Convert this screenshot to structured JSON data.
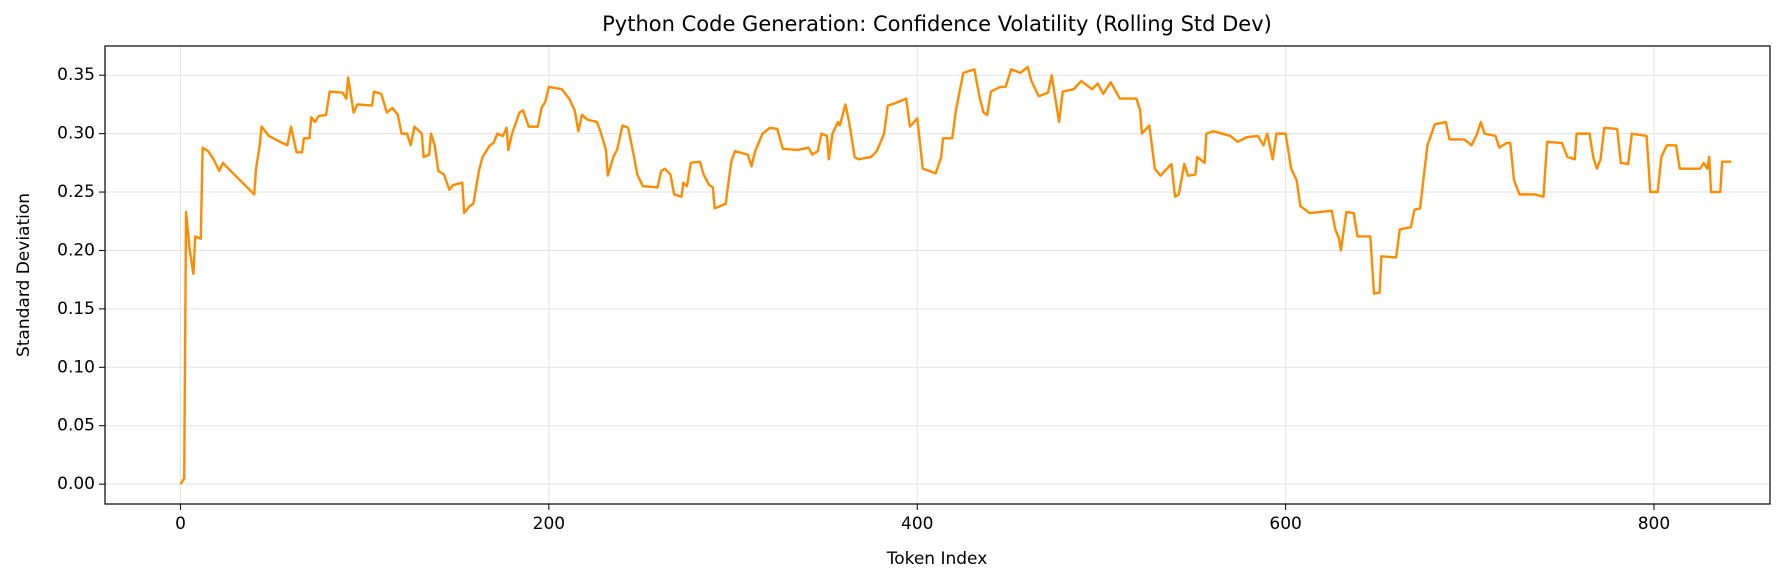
{
  "chart_data": {
    "type": "line",
    "title": "Python Code Generation: Confidence Volatility (Rolling Std Dev)",
    "xlabel": "Token Index",
    "ylabel": "Standard Deviation",
    "xlim": [
      -41,
      863
    ],
    "ylim": [
      -0.017,
      0.375
    ],
    "xticks": [
      0,
      200,
      400,
      600,
      800
    ],
    "yticks": [
      {
        "value": 0,
        "label": "0.00"
      },
      0.05,
      {
        "value": 0.1,
        "label": "0.10"
      },
      0.15,
      {
        "value": 0.2,
        "label": "0.20"
      },
      0.25,
      {
        "value": 0.3,
        "label": "0.30"
      },
      0.35
    ],
    "grid": true,
    "x": [
      0,
      2,
      3,
      5,
      7,
      8,
      11,
      12,
      15,
      18,
      21,
      23,
      26,
      40,
      41,
      43,
      44,
      48,
      54,
      58,
      60,
      63,
      66,
      67,
      70,
      71,
      73,
      75,
      79,
      81,
      88,
      90,
      91,
      94,
      96,
      104,
      105,
      109,
      112,
      115,
      118,
      120,
      123,
      125,
      127,
      131,
      132,
      135,
      136,
      138,
      140,
      143,
      146,
      148,
      153,
      154,
      157,
      159,
      162,
      164,
      168,
      170,
      172,
      175,
      177,
      178,
      180,
      184,
      186,
      189,
      194,
      196,
      198,
      200,
      207,
      211,
      214,
      216,
      218,
      221,
      226,
      228,
      231,
      232,
      235,
      237,
      240,
      243,
      246,
      248,
      251,
      259,
      261,
      263,
      266,
      268,
      272,
      273,
      275,
      277,
      282,
      284,
      287,
      289,
      290,
      296,
      299,
      301,
      308,
      310,
      312,
      316,
      320,
      324,
      327,
      335,
      341,
      343,
      346,
      348,
      351,
      352,
      354,
      357,
      358,
      361,
      363,
      366,
      368,
      375,
      378,
      382,
      384,
      388,
      394,
      396,
      400,
      403,
      410,
      413,
      414,
      419,
      421,
      425,
      429,
      431,
      434,
      436,
      438,
      440,
      445,
      448,
      451,
      456,
      460,
      462,
      466,
      471,
      473,
      477,
      479,
      485,
      489,
      495,
      498,
      501,
      505,
      510,
      519,
      521,
      522,
      526,
      529,
      532,
      538,
      540,
      542,
      545,
      547,
      551,
      552,
      556,
      557,
      561,
      570,
      574,
      579,
      585,
      588,
      590,
      593,
      595,
      600,
      603,
      606,
      608,
      613,
      619,
      625,
      627,
      629,
      630,
      633,
      637,
      639,
      646,
      648,
      651,
      652,
      660,
      662,
      668,
      670,
      673,
      677,
      681,
      687,
      689,
      697,
      701,
      704,
      706,
      708,
      714,
      716,
      720,
      722,
      724,
      727,
      735,
      740,
      742,
      750,
      753,
      757,
      758,
      765,
      767,
      769,
      771,
      773,
      780,
      782,
      786,
      788,
      796,
      798,
      802,
      804,
      807,
      812,
      814,
      825,
      827,
      829,
      830,
      831,
      836,
      837,
      842
    ],
    "series": [
      {
        "name": "Rolling Std Dev",
        "color": "#ff8c00",
        "values": [
          0,
          0.005,
          0.233,
          0.2,
          0.18,
          0.212,
          0.21,
          0.288,
          0.285,
          0.278,
          0.268,
          0.275,
          0.27,
          0.248,
          0.27,
          0.29,
          0.306,
          0.298,
          0.293,
          0.29,
          0.306,
          0.284,
          0.284,
          0.296,
          0.296,
          0.314,
          0.31,
          0.315,
          0.316,
          0.336,
          0.335,
          0.33,
          0.348,
          0.318,
          0.325,
          0.324,
          0.336,
          0.334,
          0.318,
          0.322,
          0.316,
          0.3,
          0.3,
          0.29,
          0.306,
          0.3,
          0.28,
          0.282,
          0.3,
          0.29,
          0.268,
          0.265,
          0.252,
          0.256,
          0.258,
          0.232,
          0.238,
          0.24,
          0.268,
          0.28,
          0.29,
          0.292,
          0.3,
          0.298,
          0.305,
          0.286,
          0.3,
          0.318,
          0.32,
          0.306,
          0.306,
          0.322,
          0.327,
          0.34,
          0.338,
          0.33,
          0.32,
          0.302,
          0.316,
          0.312,
          0.31,
          0.302,
          0.286,
          0.264,
          0.28,
          0.286,
          0.307,
          0.305,
          0.282,
          0.265,
          0.255,
          0.254,
          0.268,
          0.27,
          0.265,
          0.248,
          0.246,
          0.258,
          0.255,
          0.275,
          0.276,
          0.265,
          0.256,
          0.254,
          0.236,
          0.24,
          0.276,
          0.285,
          0.282,
          0.272,
          0.285,
          0.3,
          0.305,
          0.304,
          0.287,
          0.286,
          0.288,
          0.282,
          0.285,
          0.3,
          0.298,
          0.278,
          0.3,
          0.31,
          0.307,
          0.325,
          0.31,
          0.28,
          0.278,
          0.28,
          0.285,
          0.3,
          0.324,
          0.326,
          0.33,
          0.306,
          0.313,
          0.27,
          0.266,
          0.28,
          0.296,
          0.296,
          0.32,
          0.352,
          0.354,
          0.355,
          0.33,
          0.318,
          0.316,
          0.336,
          0.34,
          0.34,
          0.355,
          0.352,
          0.357,
          0.345,
          0.332,
          0.335,
          0.35,
          0.31,
          0.336,
          0.338,
          0.345,
          0.338,
          0.343,
          0.334,
          0.344,
          0.33,
          0.33,
          0.32,
          0.3,
          0.307,
          0.27,
          0.264,
          0.274,
          0.246,
          0.248,
          0.274,
          0.264,
          0.265,
          0.28,
          0.275,
          0.3,
          0.302,
          0.298,
          0.293,
          0.297,
          0.298,
          0.29,
          0.3,
          0.278,
          0.3,
          0.3,
          0.27,
          0.26,
          0.238,
          0.232,
          0.233,
          0.234,
          0.218,
          0.21,
          0.2,
          0.233,
          0.232,
          0.212,
          0.212,
          0.163,
          0.164,
          0.195,
          0.194,
          0.218,
          0.22,
          0.235,
          0.236,
          0.29,
          0.308,
          0.31,
          0.295,
          0.295,
          0.29,
          0.3,
          0.31,
          0.3,
          0.298,
          0.288,
          0.292,
          0.292,
          0.26,
          0.248,
          0.248,
          0.246,
          0.293,
          0.292,
          0.28,
          0.278,
          0.3,
          0.3,
          0.28,
          0.27,
          0.278,
          0.305,
          0.304,
          0.275,
          0.274,
          0.3,
          0.298,
          0.25,
          0.25,
          0.28,
          0.29,
          0.29,
          0.27,
          0.27,
          0.275,
          0.27,
          0.28,
          0.25,
          0.25,
          0.276,
          0.276
        ]
      }
    ]
  }
}
